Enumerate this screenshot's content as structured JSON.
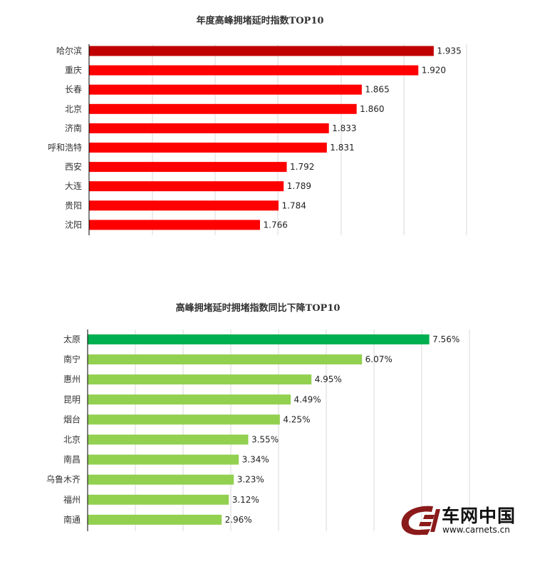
{
  "chart_data": [
    {
      "type": "bar",
      "orientation": "horizontal",
      "title": "年度高峰拥堵延时指数TOP10",
      "categories": [
        "哈尔滨",
        "重庆",
        "长春",
        "北京",
        "济南",
        "呼和浩特",
        "西安",
        "大连",
        "贵阳",
        "沈阳"
      ],
      "values": [
        1.935,
        1.92,
        1.865,
        1.86,
        1.833,
        1.831,
        1.792,
        1.789,
        1.784,
        1.766
      ],
      "value_labels": [
        "1.935",
        "1.920",
        "1.865",
        "1.860",
        "1.833",
        "1.831",
        "1.792",
        "1.789",
        "1.784",
        "1.766"
      ],
      "xlim": [
        1.6,
        1.95
      ],
      "highlight_color": "#c00000",
      "bar_color": "#ff0000",
      "grid": true,
      "x_tick_labels_shown": false
    },
    {
      "type": "bar",
      "orientation": "horizontal",
      "title": "高峰拥堵延时拥堵指数同比下降TOP10",
      "categories": [
        "太原",
        "南宁",
        "惠州",
        "昆明",
        "烟台",
        "北京",
        "南昌",
        "乌鲁木齐",
        "福州",
        "南通"
      ],
      "values": [
        7.56,
        6.07,
        4.95,
        4.49,
        4.25,
        3.55,
        3.34,
        3.23,
        3.12,
        2.96
      ],
      "value_labels": [
        "7.56%",
        "6.07%",
        "4.95%",
        "4.49%",
        "4.25%",
        "3.55%",
        "3.34%",
        "3.23%",
        "3.12%",
        "2.96%"
      ],
      "xlim": [
        0,
        8
      ],
      "highlight_color": "#00b050",
      "bar_color": "#92d050",
      "grid": true,
      "x_tick_labels_shown": false
    }
  ],
  "watermark": {
    "brand": "车网中国",
    "url": "www.carnets.cn",
    "logo_color": "#8b1a1a"
  }
}
